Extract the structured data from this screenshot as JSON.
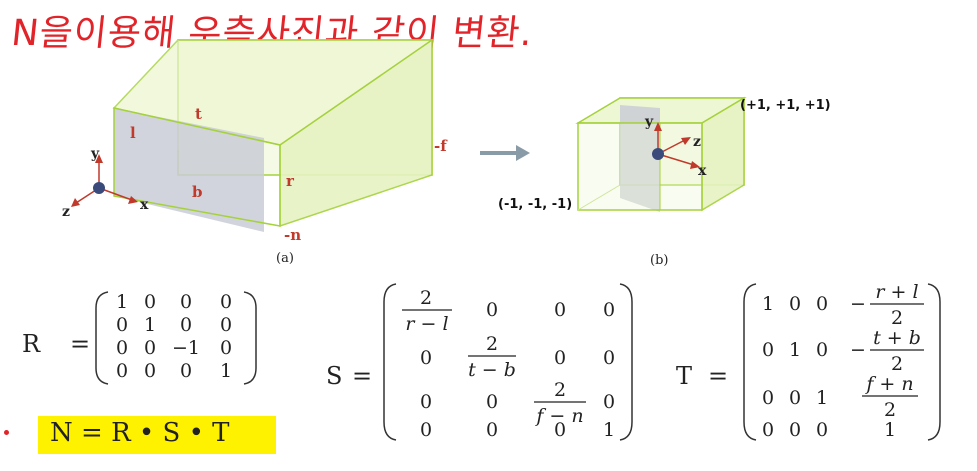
{
  "annotation": {
    "handwritten_note": "N을이용해 우측사진과 같이 변환.",
    "color": "#e0242a"
  },
  "figure_a": {
    "caption": "(a)",
    "labels": {
      "t": "t",
      "l": "l",
      "b": "b",
      "r": "r",
      "f": "-f",
      "n": "-n"
    },
    "axes": {
      "x": "x",
      "y": "y",
      "z": "z"
    }
  },
  "figure_b": {
    "caption": "(b)",
    "corner_max": "(+1, +1, +1)",
    "corner_min": "(-1, -1, -1)",
    "axes": {
      "x": "x",
      "y": "y",
      "z": "z"
    }
  },
  "colors": {
    "box_edge": "#a5d13b",
    "box_fill": "#eef7d4",
    "plane": "#c9ccd6",
    "arrow": "#8a9ba8",
    "highlight": "#fff200"
  },
  "matrix_R": {
    "name": "R",
    "rows": [
      [
        "1",
        "0",
        "0",
        "0"
      ],
      [
        "0",
        "1",
        "0",
        "0"
      ],
      [
        "0",
        "0",
        "−1",
        "0"
      ],
      [
        "0",
        "0",
        "0",
        "1"
      ]
    ]
  },
  "matrix_S": {
    "name": "S",
    "entries": {
      "s00_num": "2",
      "s00_den": "r − l",
      "s11_num": "2",
      "s11_den": "t − b",
      "s22_num": "2",
      "s22_den": "f − n",
      "zero": "0",
      "one": "1"
    }
  },
  "matrix_T": {
    "name": "T",
    "entries": {
      "one": "1",
      "zero": "0",
      "t03_sign": "−",
      "t03_num": "r + l",
      "t03_den": "2",
      "t13_sign": "−",
      "t13_num": "t + b",
      "t13_den": "2",
      "t23_num": "f + n",
      "t23_den": "2"
    }
  },
  "equation": "N = R • S • T"
}
